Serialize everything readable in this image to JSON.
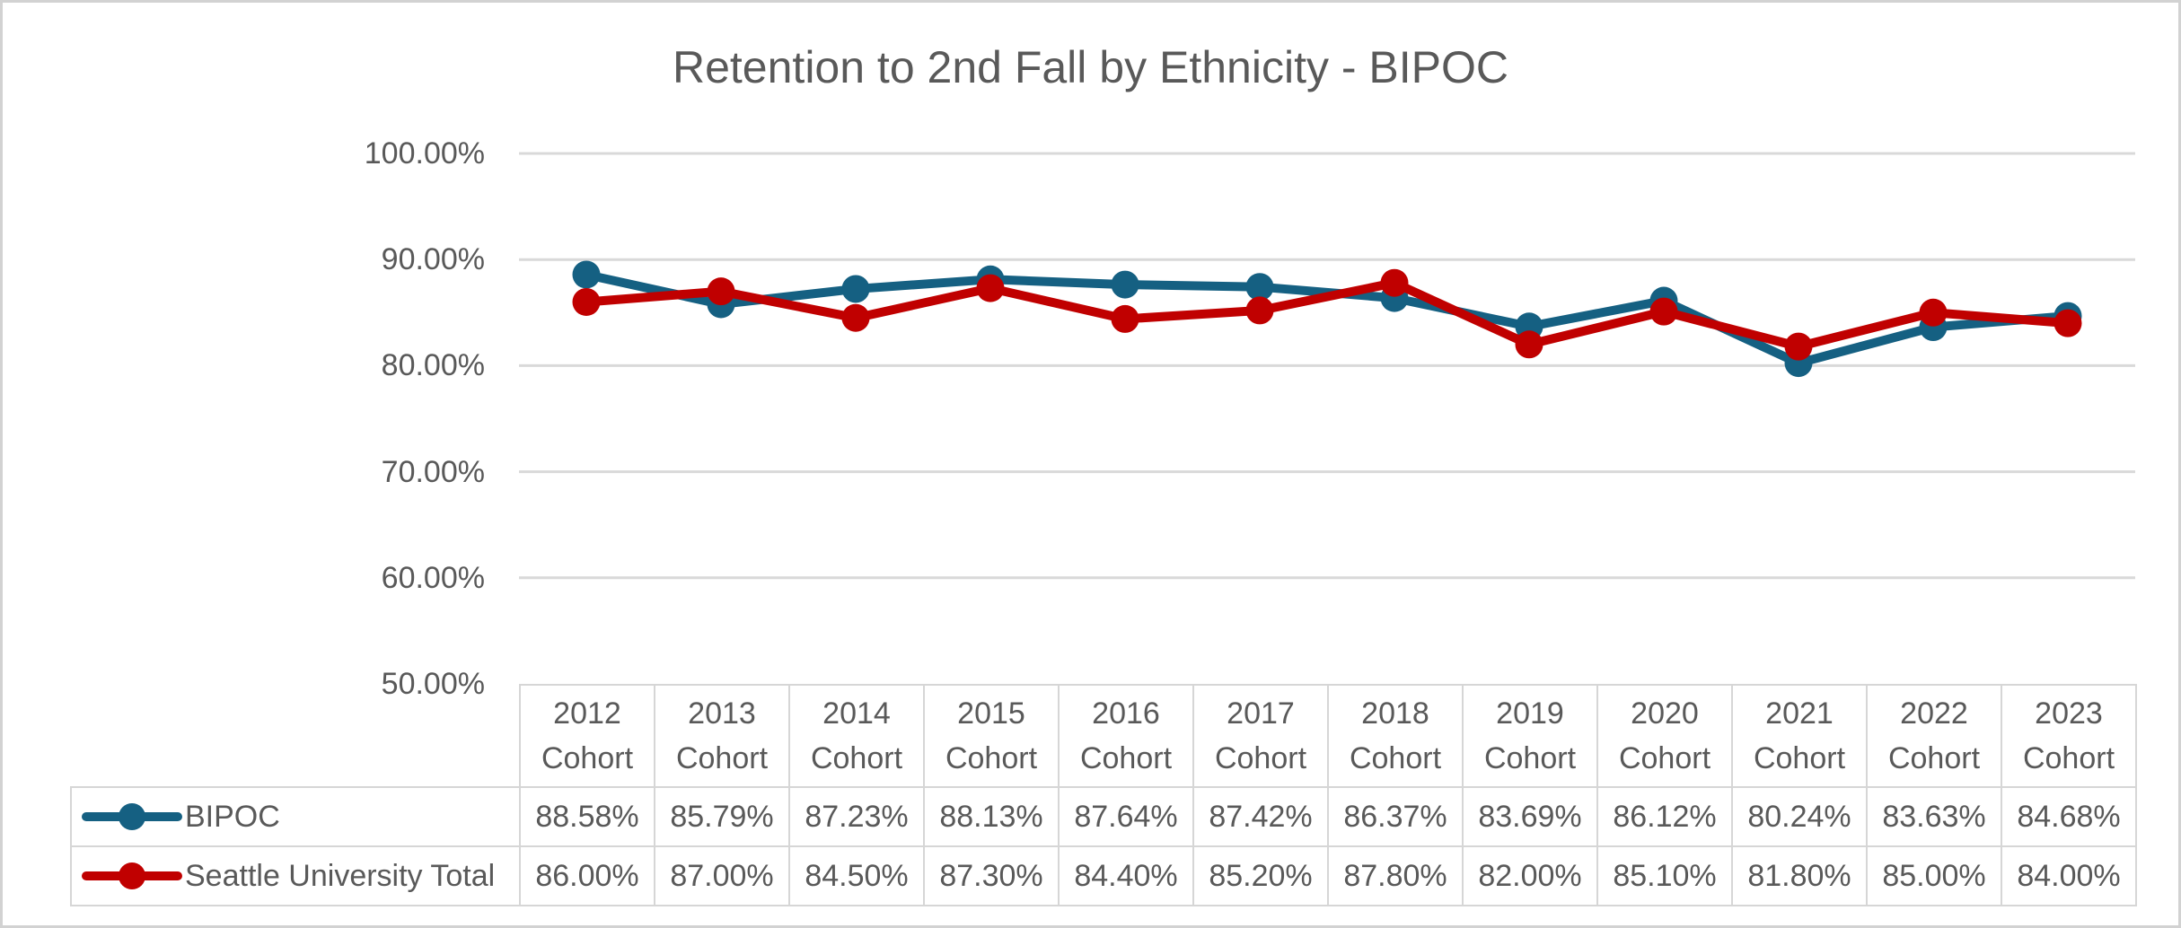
{
  "chart_data": {
    "type": "line",
    "title": "Retention to 2nd Fall by Ethnicity - BIPOC",
    "categories": [
      "2012 Cohort",
      "2013 Cohort",
      "2014 Cohort",
      "2015 Cohort",
      "2016 Cohort",
      "2017 Cohort",
      "2018 Cohort",
      "2019 Cohort",
      "2020 Cohort",
      "2021 Cohort",
      "2022 Cohort",
      "2023 Cohort"
    ],
    "series": [
      {
        "name": "BIPOC",
        "color": "#156082",
        "values": [
          88.58,
          85.79,
          87.23,
          88.13,
          87.64,
          87.42,
          86.37,
          83.69,
          86.12,
          80.24,
          83.63,
          84.68
        ],
        "formatted": [
          "88.58%",
          "85.79%",
          "87.23%",
          "88.13%",
          "87.64%",
          "87.42%",
          "86.37%",
          "83.69%",
          "86.12%",
          "80.24%",
          "83.63%",
          "84.68%"
        ]
      },
      {
        "name": "Seattle University Total",
        "color": "#C00000",
        "values": [
          86.0,
          87.0,
          84.5,
          87.3,
          84.4,
          85.2,
          87.8,
          82.0,
          85.1,
          81.8,
          85.0,
          84.0
        ],
        "formatted": [
          "86.00%",
          "87.00%",
          "84.50%",
          "87.30%",
          "84.40%",
          "85.20%",
          "87.80%",
          "82.00%",
          "85.10%",
          "81.80%",
          "85.00%",
          "84.00%"
        ]
      }
    ],
    "y_axis": {
      "min": 50,
      "max": 100,
      "step": 10,
      "tick_labels": [
        "100.00%",
        "90.00%",
        "80.00%",
        "70.00%",
        "60.00%",
        "50.00%"
      ]
    },
    "xlabel": "",
    "ylabel": "",
    "grid": true,
    "legend_position": "data-table-left",
    "marker_style": "circle"
  },
  "styles": {
    "background": "#FFFFFF",
    "text_gray": "#595959",
    "gridline_color": "#D9D9D9",
    "table_border_color": "#D6D6D6",
    "frame_border_color": "#D2D2D2",
    "accent_blue": "#156082",
    "accent_red": "#C00000"
  }
}
